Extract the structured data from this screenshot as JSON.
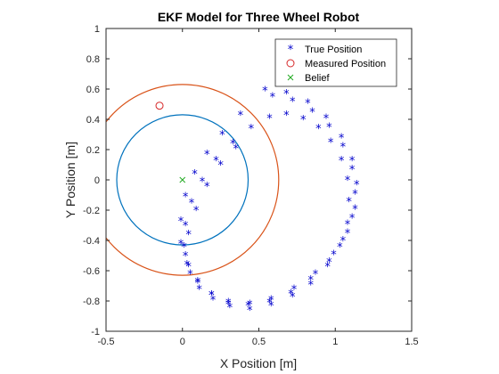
{
  "chart_data": {
    "type": "scatter",
    "title": "EKF Model for Three Wheel Robot",
    "xlabel": "X Position [m]",
    "ylabel": "Y Position [m]",
    "xlim": [
      -0.5,
      1.5
    ],
    "ylim": [
      -1,
      1
    ],
    "xticks": [
      "-0.5",
      "0",
      "0.5",
      "1",
      "1.5"
    ],
    "xtick_values": [
      -0.5,
      0,
      0.5,
      1,
      1.5
    ],
    "yticks": [
      "-1",
      "-0.8",
      "-0.6",
      "-0.4",
      "-0.2",
      "0",
      "0.2",
      "0.4",
      "0.6",
      "0.8",
      "1"
    ],
    "ytick_values": [
      -1,
      -0.8,
      -0.6,
      -0.4,
      -0.2,
      0,
      0.2,
      0.4,
      0.6,
      0.8,
      1
    ],
    "grid": false,
    "legend_position": "top-right",
    "legend": [
      {
        "label": "True Position",
        "marker": "asterisk",
        "color": "#0000cc"
      },
      {
        "label": "Measured Position",
        "marker": "circle",
        "color": "#d62728"
      },
      {
        "label": "Belief",
        "marker": "x",
        "color": "#22aa22"
      }
    ],
    "series": [
      {
        "name": "True Position",
        "marker": "asterisk",
        "color": "#0000cc",
        "x": [
          0.54,
          0.68,
          0.82,
          0.94,
          1.04,
          1.11,
          1.14,
          1.13,
          1.08,
          0.99,
          0.87,
          0.73,
          0.58,
          0.44,
          0.3,
          0.19,
          0.1,
          0.03,
          -0.01,
          -0.01,
          0.02,
          0.08,
          0.16,
          0.26,
          0.38,
          0.59,
          0.72,
          0.85,
          0.96,
          1.05,
          1.11,
          1.13,
          1.11,
          1.05,
          0.96,
          0.84,
          0.71,
          0.57,
          0.43,
          0.3,
          0.19,
          0.1,
          0.04,
          0.01,
          0.02,
          0.06,
          0.13,
          0.22,
          0.33,
          0.45,
          0.57,
          0.68,
          0.79,
          0.89,
          0.97,
          1.04,
          1.08,
          1.09,
          1.08,
          1.03,
          0.95,
          0.84,
          0.72,
          0.58,
          0.44,
          0.31,
          0.2,
          0.11,
          0.05,
          0.02,
          0.04,
          0.09,
          0.16,
          0.25,
          0.35
        ],
        "y": [
          0.59,
          0.57,
          0.51,
          0.41,
          0.28,
          0.13,
          -0.03,
          -0.19,
          -0.35,
          -0.49,
          -0.62,
          -0.72,
          -0.79,
          -0.82,
          -0.81,
          -0.76,
          -0.67,
          -0.56,
          -0.42,
          -0.27,
          -0.11,
          0.04,
          0.17,
          0.3,
          0.43,
          0.55,
          0.52,
          0.45,
          0.35,
          0.22,
          0.07,
          -0.09,
          -0.25,
          -0.4,
          -0.54,
          -0.66,
          -0.75,
          -0.81,
          -0.83,
          -0.82,
          -0.76,
          -0.68,
          -0.57,
          -0.44,
          -0.3,
          -0.15,
          -0.01,
          0.13,
          0.24,
          0.34,
          0.41,
          0.43,
          0.4,
          0.34,
          0.25,
          0.13,
          0.0,
          -0.14,
          -0.29,
          -0.44,
          -0.57,
          -0.69,
          -0.77,
          -0.83,
          -0.86,
          -0.84,
          -0.79,
          -0.72,
          -0.62,
          -0.5,
          -0.36,
          -0.2,
          -0.04,
          0.1,
          0.21
        ]
      },
      {
        "name": "Measured Position",
        "marker": "circle",
        "color": "#d62728",
        "x": [
          -0.15
        ],
        "y": [
          0.49
        ]
      },
      {
        "name": "Belief",
        "marker": "x",
        "color": "#22aa22",
        "x": [
          0
        ],
        "y": [
          0
        ]
      }
    ],
    "ellipses": [
      {
        "cx": 0,
        "cy": 0,
        "rx": 0.43,
        "ry": 0.43,
        "color": "#0072bd"
      },
      {
        "cx": 0,
        "cy": 0,
        "rx": 0.63,
        "ry": 0.63,
        "color": "#d95319"
      }
    ]
  }
}
